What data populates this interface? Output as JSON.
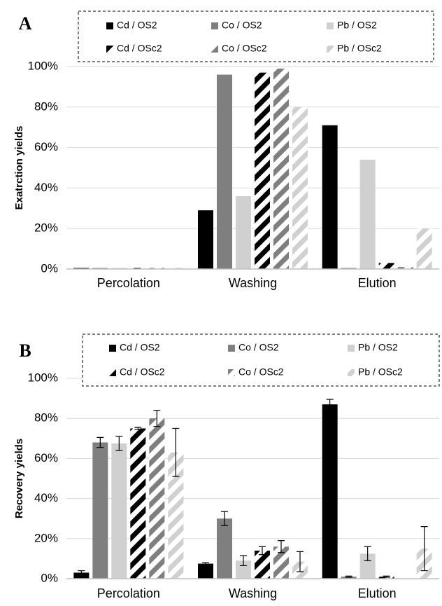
{
  "colors": {
    "cd": "#000000",
    "co": "#7f7f7f",
    "pb": "#d0d0d0",
    "grid": "#d9d9d9",
    "axis": "#bfbfbf",
    "error_bar": "#000000"
  },
  "chart_data": [
    {
      "type": "bar",
      "panel_letter": "A",
      "ylabel": "Exatrction yields",
      "categories": [
        "Percolation",
        "Washing",
        "Elution"
      ],
      "ylim": [
        0,
        100
      ],
      "yticks": [
        "0%",
        "20%",
        "40%",
        "60%",
        "80%",
        "100%"
      ],
      "grid": true,
      "legend_position": "top",
      "series": [
        {
          "name": "Cd / OS2",
          "color_key": "cd",
          "pattern": "solid",
          "values": [
            0.5,
            29,
            71
          ]
        },
        {
          "name": "Co / OS2",
          "color_key": "co",
          "pattern": "solid",
          "values": [
            0.5,
            96,
            0.5
          ]
        },
        {
          "name": "Pb / OS2",
          "color_key": "pb",
          "pattern": "solid",
          "values": [
            0.3,
            36,
            54
          ]
        },
        {
          "name": "Cd / OSc2",
          "color_key": "cd",
          "pattern": "striped",
          "values": [
            0.4,
            97,
            3
          ]
        },
        {
          "name": "Co / OSc2",
          "color_key": "co",
          "pattern": "striped",
          "values": [
            0.3,
            99,
            1
          ]
        },
        {
          "name": "Pb / OSc2",
          "color_key": "pb",
          "pattern": "striped",
          "values": [
            0.2,
            80,
            20
          ]
        }
      ]
    },
    {
      "type": "bar",
      "panel_letter": "B",
      "ylabel": "Recovery yields",
      "categories": [
        "Percolation",
        "Washing",
        "Elution"
      ],
      "ylim": [
        0,
        100
      ],
      "yticks": [
        "0%",
        "20%",
        "40%",
        "60%",
        "80%",
        "100%"
      ],
      "grid": true,
      "legend_position": "top",
      "series": [
        {
          "name": "Cd / OS2",
          "color_key": "cd",
          "pattern": "solid",
          "values": [
            3,
            7.5,
            87
          ],
          "errors": [
            1,
            0.5,
            2.5
          ]
        },
        {
          "name": "Co / OS2",
          "color_key": "co",
          "pattern": "solid",
          "values": [
            68,
            30,
            1
          ],
          "errors": [
            2.5,
            3.5,
            0.3
          ]
        },
        {
          "name": "Pb / OS2",
          "color_key": "pb",
          "pattern": "solid",
          "values": [
            67.5,
            9,
            12.5
          ],
          "errors": [
            3.5,
            2.5,
            3.5
          ]
        },
        {
          "name": "Cd / OSc2",
          "color_key": "cd",
          "pattern": "striped",
          "values": [
            75,
            14,
            1
          ],
          "errors": [
            0.5,
            2,
            0.3
          ]
        },
        {
          "name": "Co / OSc2",
          "color_key": "co",
          "pattern": "striped",
          "values": [
            80,
            16,
            0
          ],
          "errors": [
            4,
            3,
            0
          ]
        },
        {
          "name": "Pb / OSc2",
          "color_key": "pb",
          "pattern": "striped",
          "values": [
            63,
            8.5,
            15
          ],
          "errors": [
            12,
            5,
            11
          ]
        }
      ]
    }
  ]
}
